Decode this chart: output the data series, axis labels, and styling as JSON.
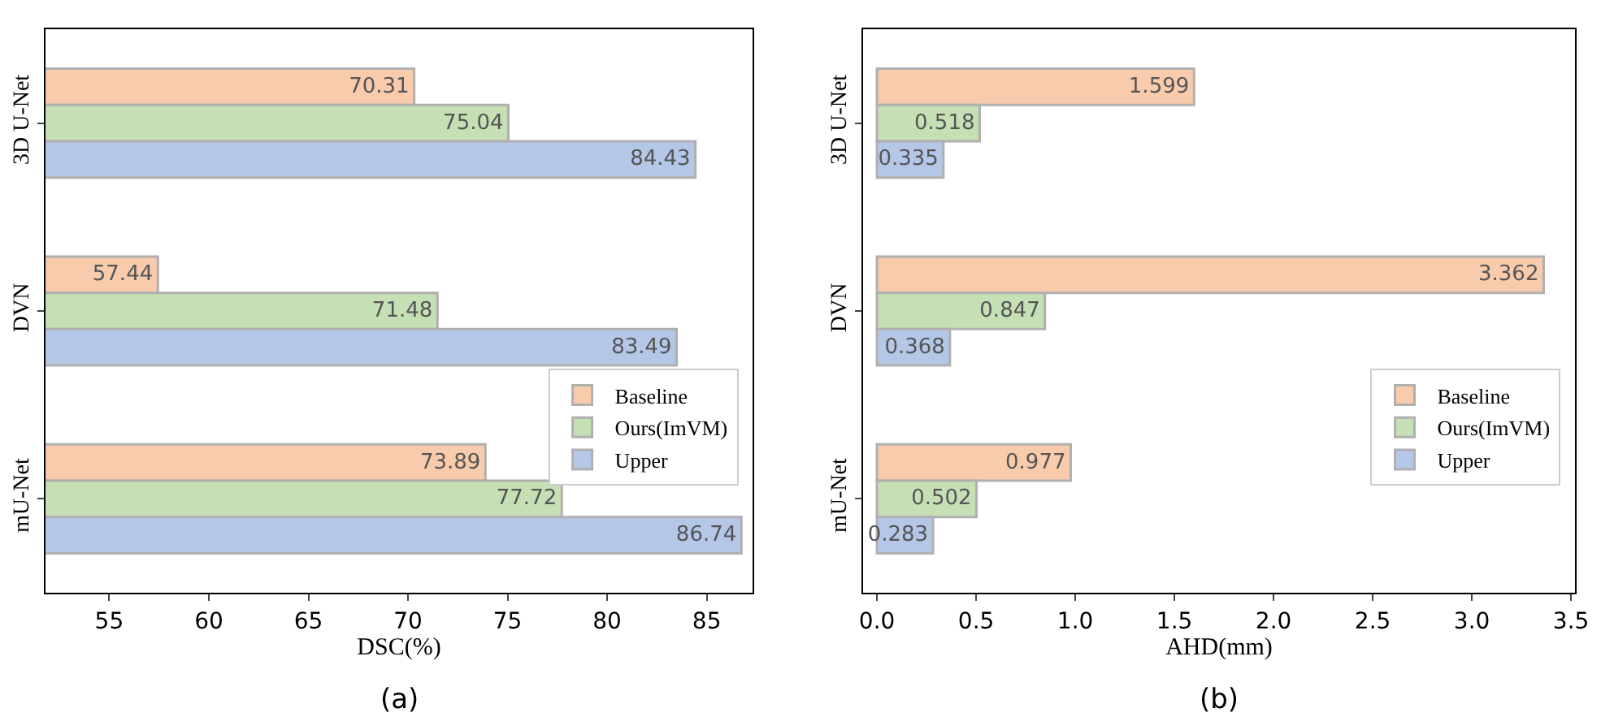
{
  "chart_data": [
    {
      "type": "bar",
      "orientation": "horizontal",
      "xlabel": "DSC(%)",
      "categories": [
        "3D U-Net",
        "DVN",
        "mU-Net"
      ],
      "series": [
        {
          "name": "Baseline",
          "color": "#f8cbad",
          "values": [
            70.31,
            57.44,
            73.89
          ]
        },
        {
          "name": "Ours(ImVM)",
          "color": "#c5e0b4",
          "values": [
            75.04,
            71.48,
            77.72
          ]
        },
        {
          "name": "Upper",
          "color": "#b4c7e7",
          "values": [
            84.43,
            83.49,
            86.74
          ]
        }
      ],
      "xlim": [
        51.8,
        87.3
      ],
      "xticks": [
        55,
        60,
        65,
        70,
        75,
        80,
        85
      ],
      "data_labels": true,
      "grid": false,
      "legend": "right",
      "annotations": [
        "(a)"
      ]
    },
    {
      "type": "bar",
      "orientation": "horizontal",
      "xlabel": "AHD(mm)",
      "categories": [
        "3D U-Net",
        "DVN",
        "mU-Net"
      ],
      "series": [
        {
          "name": "Baseline",
          "color": "#f8cbad",
          "values": [
            1.599,
            3.362,
            0.977
          ]
        },
        {
          "name": "Ours(ImVM)",
          "color": "#c5e0b4",
          "values": [
            0.518,
            0.847,
            0.502
          ]
        },
        {
          "name": "Upper",
          "color": "#b4c7e7",
          "values": [
            0.335,
            0.368,
            0.283
          ]
        }
      ],
      "xlim": [
        -0.07,
        3.52
      ],
      "xticks": [
        {
          "value": 0,
          "label": "0.0"
        },
        {
          "value": 0.5,
          "label": "0.5"
        },
        {
          "value": 1,
          "label": "1.0"
        },
        {
          "value": 1.5,
          "label": "1.5"
        },
        {
          "value": 2,
          "label": "2.0"
        },
        {
          "value": 2.5,
          "label": "2.5"
        },
        {
          "value": 3,
          "label": "3.0"
        },
        {
          "value": 3.5,
          "label": "3.5"
        }
      ],
      "data_labels": true,
      "grid": false,
      "legend": "right",
      "annotations": [
        "(b)"
      ]
    }
  ]
}
